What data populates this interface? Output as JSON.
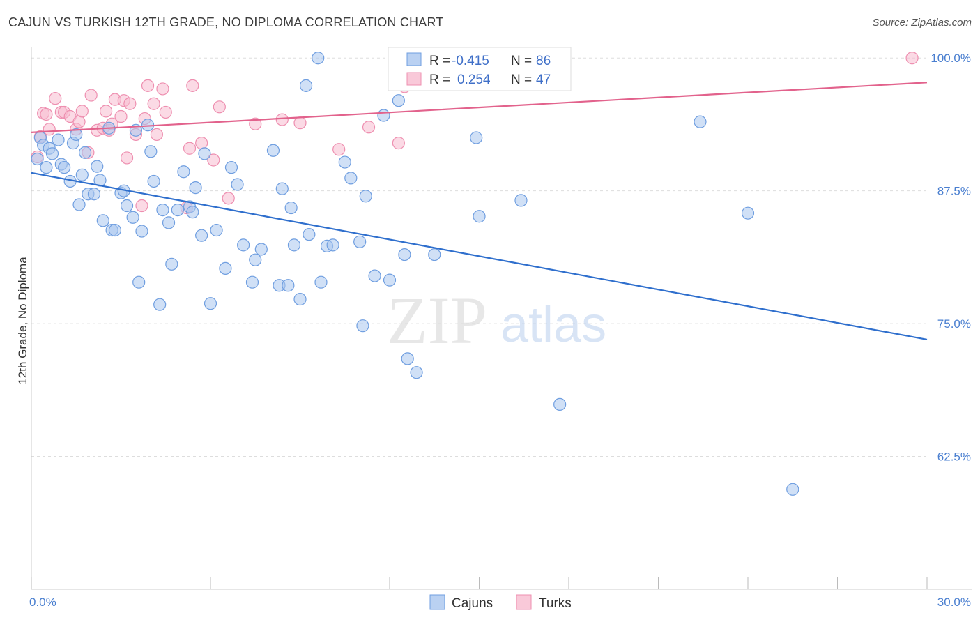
{
  "title": "CAJUN VS TURKISH 12TH GRADE, NO DIPLOMA CORRELATION CHART",
  "source": "Source: ZipAtlas.com",
  "watermark": {
    "zip": "ZIP",
    "atlas": "atlas"
  },
  "colors": {
    "cajun_fill": "#a9c6ef",
    "cajun_stroke": "#6f9ee0",
    "cajun_line": "#2f6fcd",
    "turk_fill": "#f7bcd0",
    "turk_stroke": "#ee8fb0",
    "turk_line": "#e2628c",
    "grid": "#dddddd",
    "tick_label": "#4a7fd0"
  },
  "legend": {
    "cajun": {
      "r_label": "R =",
      "r_value": "-0.415",
      "n_label": "N =",
      "n_value": "86"
    },
    "turk": {
      "r_label": "R =",
      "r_value": "0.254",
      "n_label": "N =",
      "n_value": "47"
    }
  },
  "bottom_legend": [
    "Cajuns",
    "Turks"
  ],
  "chart_data": {
    "type": "scatter",
    "ylabel": "12th Grade, No Diploma",
    "xlim": [
      0,
      30
    ],
    "ylim": [
      50,
      101
    ],
    "x_tick_labels": [
      "0.0%",
      "30.0%"
    ],
    "y_ticks": [
      62.5,
      75.0,
      87.5,
      100.0
    ],
    "y_tick_labels": [
      "62.5%",
      "75.0%",
      "87.5%",
      "100.0%"
    ],
    "grid": true,
    "series": [
      {
        "name": "Cajuns",
        "trend": {
          "x": [
            0,
            30
          ],
          "y": [
            89.2,
            73.5
          ]
        },
        "points": [
          [
            0.2,
            90.5
          ],
          [
            0.3,
            92.5
          ],
          [
            0.4,
            91.8
          ],
          [
            0.5,
            89.7
          ],
          [
            0.6,
            91.5
          ],
          [
            0.7,
            91.0
          ],
          [
            0.9,
            92.3
          ],
          [
            1.0,
            90.0
          ],
          [
            1.1,
            89.7
          ],
          [
            1.3,
            88.4
          ],
          [
            1.4,
            92.0
          ],
          [
            1.5,
            92.8
          ],
          [
            1.6,
            86.2
          ],
          [
            1.7,
            89.0
          ],
          [
            1.8,
            91.1
          ],
          [
            1.9,
            87.2
          ],
          [
            2.1,
            87.2
          ],
          [
            2.2,
            89.8
          ],
          [
            2.3,
            88.5
          ],
          [
            2.4,
            84.7
          ],
          [
            2.6,
            93.4
          ],
          [
            2.7,
            83.8
          ],
          [
            2.8,
            83.8
          ],
          [
            3.0,
            87.3
          ],
          [
            3.1,
            87.5
          ],
          [
            3.2,
            86.1
          ],
          [
            3.4,
            85.0
          ],
          [
            3.5,
            93.2
          ],
          [
            3.6,
            78.9
          ],
          [
            3.7,
            83.7
          ],
          [
            3.9,
            93.7
          ],
          [
            4.0,
            91.2
          ],
          [
            4.1,
            88.4
          ],
          [
            4.3,
            76.8
          ],
          [
            4.4,
            85.7
          ],
          [
            4.6,
            84.5
          ],
          [
            4.7,
            80.6
          ],
          [
            4.9,
            85.7
          ],
          [
            5.1,
            89.3
          ],
          [
            5.3,
            86.0
          ],
          [
            5.4,
            85.5
          ],
          [
            5.5,
            87.8
          ],
          [
            5.7,
            83.3
          ],
          [
            5.8,
            91.0
          ],
          [
            6.0,
            76.9
          ],
          [
            6.2,
            83.8
          ],
          [
            6.5,
            80.2
          ],
          [
            6.7,
            89.7
          ],
          [
            6.9,
            88.1
          ],
          [
            7.1,
            82.4
          ],
          [
            7.4,
            78.9
          ],
          [
            7.5,
            81.0
          ],
          [
            7.7,
            82.0
          ],
          [
            8.1,
            91.3
          ],
          [
            8.3,
            78.6
          ],
          [
            8.4,
            87.7
          ],
          [
            8.6,
            78.6
          ],
          [
            8.7,
            85.9
          ],
          [
            8.8,
            82.4
          ],
          [
            9.0,
            77.3
          ],
          [
            9.2,
            97.4
          ],
          [
            9.3,
            83.4
          ],
          [
            9.6,
            100.0
          ],
          [
            9.7,
            78.9
          ],
          [
            9.9,
            82.3
          ],
          [
            10.1,
            82.4
          ],
          [
            10.5,
            90.2
          ],
          [
            10.7,
            88.7
          ],
          [
            11.0,
            82.7
          ],
          [
            11.1,
            74.8
          ],
          [
            11.2,
            87.0
          ],
          [
            11.5,
            79.5
          ],
          [
            11.8,
            94.6
          ],
          [
            12.0,
            79.1
          ],
          [
            12.3,
            96.0
          ],
          [
            12.5,
            81.5
          ],
          [
            12.6,
            71.7
          ],
          [
            12.9,
            70.4
          ],
          [
            13.5,
            81.5
          ],
          [
            14.9,
            92.5
          ],
          [
            15.0,
            85.1
          ],
          [
            16.4,
            86.6
          ],
          [
            17.7,
            67.4
          ],
          [
            22.4,
            94.0
          ],
          [
            24.0,
            85.4
          ],
          [
            25.5,
            59.4
          ]
        ]
      },
      {
        "name": "Turks",
        "trend": {
          "x": [
            0,
            30
          ],
          "y": [
            93.0,
            97.7
          ]
        },
        "points": [
          [
            0.2,
            90.7
          ],
          [
            0.3,
            92.6
          ],
          [
            0.4,
            94.8
          ],
          [
            0.5,
            94.7
          ],
          [
            0.6,
            93.3
          ],
          [
            0.8,
            96.2
          ],
          [
            1.0,
            94.9
          ],
          [
            1.1,
            94.9
          ],
          [
            1.3,
            94.5
          ],
          [
            1.5,
            93.3
          ],
          [
            1.6,
            94.0
          ],
          [
            1.7,
            95.0
          ],
          [
            1.9,
            91.1
          ],
          [
            2.0,
            96.5
          ],
          [
            2.2,
            93.2
          ],
          [
            2.4,
            93.4
          ],
          [
            2.5,
            95.0
          ],
          [
            2.6,
            93.2
          ],
          [
            2.7,
            93.8
          ],
          [
            2.8,
            96.1
          ],
          [
            3.0,
            94.5
          ],
          [
            3.1,
            96.0
          ],
          [
            3.2,
            90.6
          ],
          [
            3.3,
            95.7
          ],
          [
            3.5,
            92.8
          ],
          [
            3.7,
            86.1
          ],
          [
            3.8,
            94.3
          ],
          [
            3.9,
            97.4
          ],
          [
            4.1,
            95.7
          ],
          [
            4.2,
            92.8
          ],
          [
            4.4,
            97.1
          ],
          [
            4.5,
            94.9
          ],
          [
            5.2,
            85.9
          ],
          [
            5.3,
            91.5
          ],
          [
            5.4,
            97.4
          ],
          [
            5.7,
            92.0
          ],
          [
            6.1,
            90.4
          ],
          [
            6.3,
            95.4
          ],
          [
            6.6,
            86.8
          ],
          [
            7.5,
            93.8
          ],
          [
            8.4,
            94.2
          ],
          [
            9.0,
            93.9
          ],
          [
            10.3,
            91.4
          ],
          [
            11.3,
            93.5
          ],
          [
            12.3,
            92.0
          ],
          [
            12.5,
            97.3
          ],
          [
            29.5,
            100.0
          ]
        ]
      }
    ]
  }
}
